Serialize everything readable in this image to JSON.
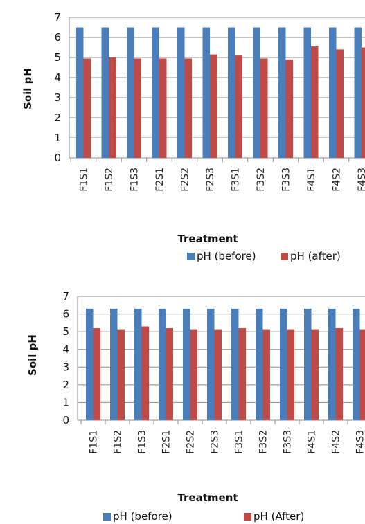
{
  "chart_data": [
    {
      "type": "bar",
      "title": "",
      "xlabel": "Treatment",
      "ylabel": "Soil pH",
      "ylim": [
        0,
        7
      ],
      "yticks": [
        "0",
        "1",
        "2",
        "3",
        "4",
        "5",
        "6",
        "7"
      ],
      "grid": true,
      "legend": "bottom",
      "categories": [
        "F1S1",
        "F1S2",
        "F1S3",
        "F2S1",
        "F2S2",
        "F2S3",
        "F3S1",
        "F3S2",
        "F3S3",
        "F4S1",
        "F4S2",
        "F4S3"
      ],
      "series": [
        {
          "name": "pH (before)",
          "color": "#4a7ebb",
          "values": [
            6.5,
            6.5,
            6.5,
            6.5,
            6.5,
            6.5,
            6.5,
            6.5,
            6.5,
            6.5,
            6.5,
            6.5
          ]
        },
        {
          "name": "pH (after)",
          "color": "#be4b48",
          "values": [
            4.95,
            5.0,
            4.95,
            4.95,
            4.95,
            5.15,
            5.1,
            4.95,
            4.9,
            5.55,
            5.4,
            5.5
          ]
        }
      ]
    },
    {
      "type": "bar",
      "title": "",
      "xlabel": "Treatment",
      "ylabel": "Soil pH",
      "ylim": [
        0,
        7
      ],
      "yticks": [
        "0",
        "1",
        "2",
        "3",
        "4",
        "5",
        "6",
        "7"
      ],
      "grid": true,
      "legend": "bottom",
      "categories": [
        "F1S1",
        "F1S2",
        "F1S3",
        "F2S1",
        "F2S2",
        "F2S3",
        "F3S1",
        "F3S2",
        "F3S3",
        "F4S1",
        "F4S2",
        "F4S3"
      ],
      "series": [
        {
          "name": "pH (before)",
          "color": "#4a7ebb",
          "values": [
            6.3,
            6.3,
            6.3,
            6.3,
            6.3,
            6.3,
            6.3,
            6.3,
            6.3,
            6.3,
            6.3,
            6.3
          ]
        },
        {
          "name": "pH (After)",
          "color": "#be4b48",
          "values": [
            5.2,
            5.1,
            5.3,
            5.2,
            5.1,
            5.1,
            5.2,
            5.1,
            5.1,
            5.1,
            5.2,
            5.1
          ]
        }
      ]
    }
  ]
}
